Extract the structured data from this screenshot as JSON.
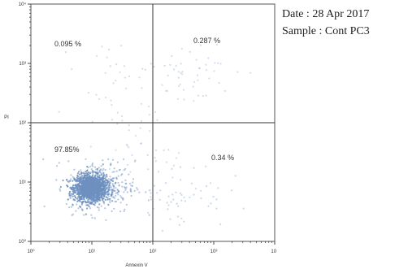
{
  "info": {
    "date_label": "Date :",
    "date_value": "28 Apr 2017",
    "sample_label": "Sample :",
    "sample_value": "Cont PC3"
  },
  "chart_data": {
    "type": "scatter",
    "title": "",
    "xlabel": "Annexin V",
    "ylabel": "PI",
    "xscale": "log",
    "yscale": "log",
    "xlim": [
      1,
      10000
    ],
    "ylim": [
      1,
      10000
    ],
    "x_ticks": [
      "10⁰",
      "10¹",
      "10²",
      "10³",
      "10⁴"
    ],
    "y_ticks": [
      "10⁰",
      "10¹",
      "10²",
      "10³",
      "10⁴"
    ],
    "quadrant_gate": {
      "x": 100,
      "y": 100
    },
    "quadrants": [
      {
        "position": "upper-left",
        "percent": "0.095 %"
      },
      {
        "position": "upper-right",
        "percent": "0.287 %"
      },
      {
        "position": "lower-left",
        "percent": "97.85%"
      },
      {
        "position": "lower-right",
        "percent": "0.34 %"
      }
    ],
    "point_color": "#6e90c0",
    "grid": false,
    "legend": "none"
  }
}
